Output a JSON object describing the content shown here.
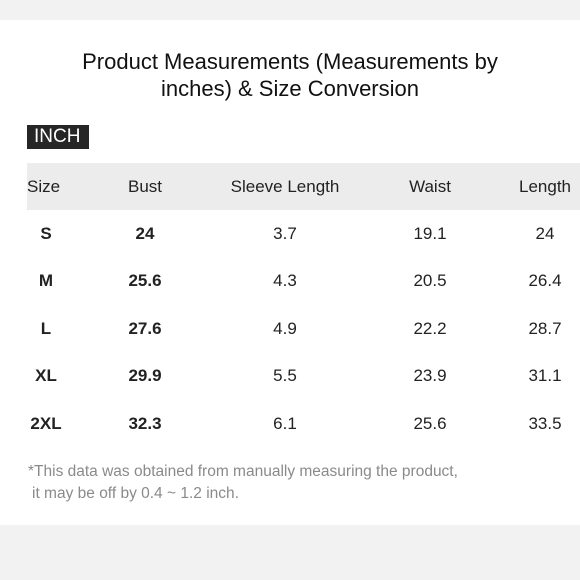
{
  "title": {
    "line1": "Product Measurements (Measurements by",
    "line2": "inches) & Size Conversion"
  },
  "unit_label": "INCH",
  "table": {
    "headers": [
      "Size",
      "Bust",
      "Sleeve Length",
      "Waist",
      "Length"
    ],
    "rows": [
      [
        "S",
        "24",
        "3.7",
        "19.1",
        "24"
      ],
      [
        "M",
        "25.6",
        "4.3",
        "20.5",
        "26.4"
      ],
      [
        "L",
        "27.6",
        "4.9",
        "22.2",
        "28.7"
      ],
      [
        "XL",
        "29.9",
        "5.5",
        "23.9",
        "31.1"
      ],
      [
        "2XL",
        "32.3",
        "6.1",
        "25.6",
        "33.5"
      ]
    ]
  },
  "footnote": {
    "line1": "*This data was obtained from manually measuring the product,",
    "line2": "it may be off by 0.4 ~ 1.2 inch."
  }
}
